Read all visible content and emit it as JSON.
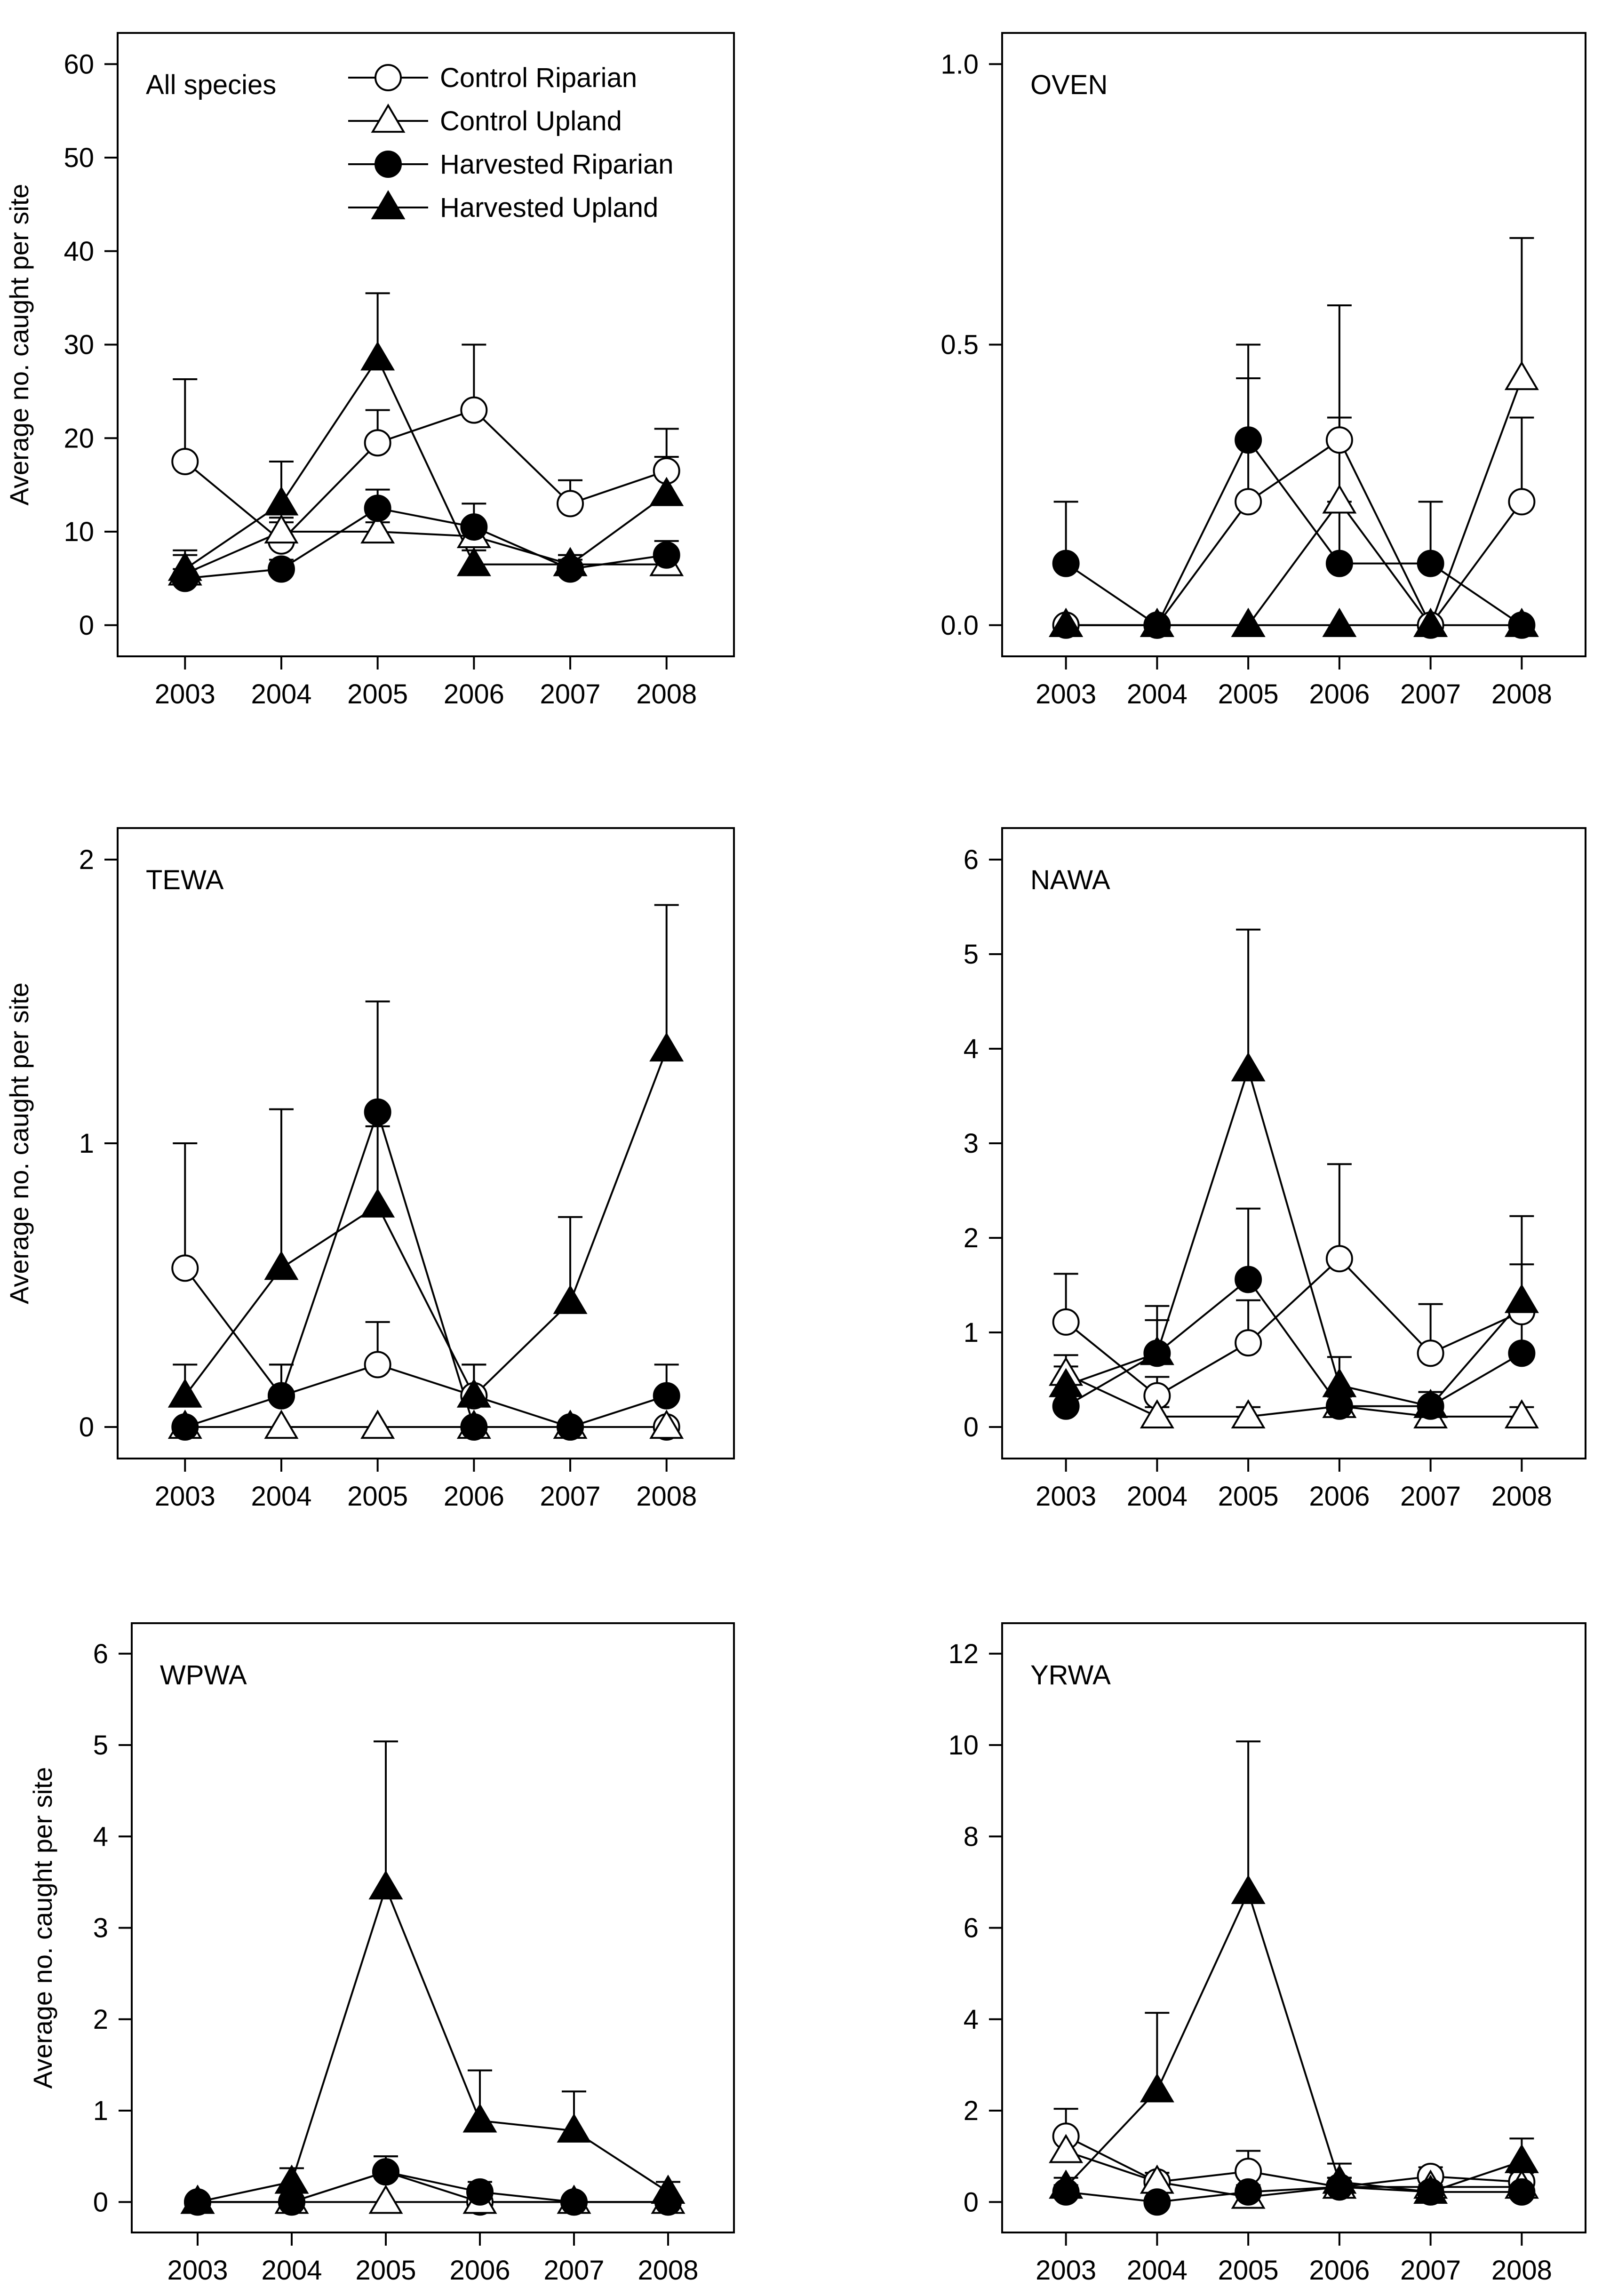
{
  "figure": {
    "ylabel": "Average no. caught per site",
    "legend": [
      "Control Riparian",
      "Control Upland",
      "Harvested Riparian",
      "Harvested Upland"
    ],
    "series_styles": [
      {
        "name": "Control Riparian",
        "marker": "circle",
        "fill": "#ffffff"
      },
      {
        "name": "Control Upland",
        "marker": "triangle",
        "fill": "#ffffff"
      },
      {
        "name": "Harvested Riparian",
        "marker": "circle",
        "fill": "#000000"
      },
      {
        "name": "Harvested Upland",
        "marker": "triangle",
        "fill": "#000000"
      }
    ]
  },
  "chart_data": [
    {
      "type": "line",
      "title": "All species",
      "categories": [
        "2003",
        "2004",
        "2005",
        "2006",
        "2007",
        "2008"
      ],
      "ylim": [
        0,
        60
      ],
      "yticks": [
        "0",
        "10",
        "20",
        "30",
        "40",
        "50",
        "60"
      ],
      "ylabel": "Average no. caught per site",
      "legend": "top-right",
      "series": [
        {
          "name": "Control Riparian",
          "values": [
            17.5,
            9,
            19.5,
            23,
            13,
            16.5
          ],
          "errors": [
            8.8,
            2,
            3.5,
            7,
            2.5,
            4.5
          ]
        },
        {
          "name": "Control Upland",
          "values": [
            5.5,
            10,
            10,
            9.5,
            6.5,
            6.5
          ],
          "errors": [
            2,
            1.5,
            1,
            1.5,
            1,
            1.5
          ]
        },
        {
          "name": "Harvested Riparian",
          "values": [
            5,
            6,
            12.5,
            10.5,
            6,
            7.5
          ],
          "errors": [
            1,
            1,
            2,
            2.5,
            1,
            1.5
          ]
        },
        {
          "name": "Harvested Upland",
          "values": [
            6,
            13,
            28.5,
            6.5,
            6.5,
            14
          ],
          "errors": [
            2,
            4.5,
            7,
            1.5,
            1,
            4
          ]
        }
      ]
    },
    {
      "type": "line",
      "title": "OVEN",
      "categories": [
        "2003",
        "2004",
        "2005",
        "2006",
        "2007",
        "2008"
      ],
      "ylim": [
        0,
        1.0
      ],
      "yticks": [
        "0.0",
        "0.5",
        "1.0"
      ],
      "series": [
        {
          "name": "Control Riparian",
          "values": [
            0,
            0,
            0.22,
            0.33,
            0,
            0.22
          ],
          "errors": [
            0,
            0,
            0.22,
            0.24,
            0,
            0.15
          ]
        },
        {
          "name": "Control Upland",
          "values": [
            0,
            0,
            0,
            0.22,
            0,
            0.44
          ],
          "errors": [
            0,
            0,
            0,
            0.15,
            0,
            0.25
          ]
        },
        {
          "name": "Harvested Riparian",
          "values": [
            0.11,
            0,
            0.33,
            0.11,
            0.11,
            0
          ],
          "errors": [
            0.11,
            0,
            0.17,
            0.11,
            0.11,
            0
          ]
        },
        {
          "name": "Harvested Upland",
          "values": [
            0,
            0,
            0,
            0,
            0,
            0
          ],
          "errors": [
            0,
            0,
            0,
            0,
            0,
            0
          ]
        }
      ]
    },
    {
      "type": "line",
      "title": "TEWA",
      "categories": [
        "2003",
        "2004",
        "2005",
        "2006",
        "2007",
        "2008"
      ],
      "ylim": [
        0,
        2
      ],
      "yticks": [
        "0",
        "1",
        "2"
      ],
      "ylabel": "Average no. caught per site",
      "series": [
        {
          "name": "Control Riparian",
          "values": [
            0.56,
            0.11,
            0.22,
            0.11,
            0,
            0
          ],
          "errors": [
            0.44,
            0.11,
            0.15,
            0.11,
            0,
            0
          ]
        },
        {
          "name": "Control Upland",
          "values": [
            0,
            0,
            0,
            0,
            0,
            0
          ],
          "errors": [
            0,
            0,
            0,
            0,
            0,
            0
          ]
        },
        {
          "name": "Harvested Riparian",
          "values": [
            0,
            0.11,
            1.11,
            0,
            0,
            0.11
          ],
          "errors": [
            0,
            0.11,
            0.39,
            0,
            0,
            0.11
          ]
        },
        {
          "name": "Harvested Upland",
          "values": [
            0.11,
            0.56,
            0.78,
            0.11,
            0.44,
            1.33
          ],
          "errors": [
            0.11,
            0.56,
            0.28,
            0.11,
            0.3,
            0.51
          ]
        }
      ]
    },
    {
      "type": "line",
      "title": "NAWA",
      "categories": [
        "2003",
        "2004",
        "2005",
        "2006",
        "2007",
        "2008"
      ],
      "ylim": [
        0,
        6
      ],
      "yticks": [
        "0",
        "1",
        "2",
        "3",
        "4",
        "5",
        "6"
      ],
      "series": [
        {
          "name": "Control Riparian",
          "values": [
            1.11,
            0.33,
            0.89,
            1.78,
            0.78,
            1.22
          ],
          "errors": [
            0.51,
            0.2,
            0.45,
            1.0,
            0.52,
            0.5
          ]
        },
        {
          "name": "Control Upland",
          "values": [
            0.56,
            0.11,
            0.11,
            0.22,
            0.11,
            0.11
          ],
          "errors": [
            0.2,
            0.1,
            0.1,
            0.1,
            0.1,
            0.1
          ]
        },
        {
          "name": "Harvested Riparian",
          "values": [
            0.22,
            0.78,
            1.56,
            0.22,
            0.22,
            0.78
          ],
          "errors": [
            0.15,
            0.5,
            0.75,
            0.15,
            0.15,
            0.5
          ]
        },
        {
          "name": "Harvested Upland",
          "values": [
            0.44,
            0.78,
            3.78,
            0.44,
            0.22,
            1.33
          ],
          "errors": [
            0.2,
            0.35,
            1.48,
            0.3,
            0.15,
            0.9
          ]
        }
      ]
    },
    {
      "type": "line",
      "title": "WPWA",
      "categories": [
        "2003",
        "2004",
        "2005",
        "2006",
        "2007",
        "2008"
      ],
      "ylim": [
        0,
        6
      ],
      "yticks": [
        "0",
        "1",
        "2",
        "3",
        "4",
        "5",
        "6"
      ],
      "ylabel": "Average no. caught per site",
      "series": [
        {
          "name": "Control Riparian",
          "values": [
            0,
            0,
            0.33,
            0,
            0,
            0
          ],
          "errors": [
            0,
            0,
            0.17,
            0,
            0,
            0
          ]
        },
        {
          "name": "Control Upland",
          "values": [
            0,
            0,
            0,
            0,
            0,
            0
          ],
          "errors": [
            0,
            0,
            0,
            0,
            0,
            0
          ]
        },
        {
          "name": "Harvested Riparian",
          "values": [
            0,
            0,
            0.33,
            0.11,
            0,
            0
          ],
          "errors": [
            0,
            0,
            0.17,
            0.11,
            0,
            0
          ]
        },
        {
          "name": "Harvested Upland",
          "values": [
            0,
            0.22,
            3.44,
            0.89,
            0.78,
            0.11
          ],
          "errors": [
            0,
            0.15,
            1.6,
            0.55,
            0.43,
            0.11
          ]
        }
      ]
    },
    {
      "type": "line",
      "title": "YRWA",
      "categories": [
        "2003",
        "2004",
        "2005",
        "2006",
        "2007",
        "2008"
      ],
      "ylim": [
        0,
        12
      ],
      "yticks": [
        "0",
        "2",
        "4",
        "6",
        "8",
        "10",
        "12"
      ],
      "series": [
        {
          "name": "Control Riparian",
          "values": [
            1.44,
            0.44,
            0.67,
            0.33,
            0.56,
            0.44
          ],
          "errors": [
            0.6,
            0.2,
            0.45,
            0.2,
            0.2,
            0.2
          ]
        },
        {
          "name": "Control Upland",
          "values": [
            1.11,
            0.44,
            0.11,
            0.33,
            0.33,
            0.33
          ],
          "errors": [
            0.4,
            0.2,
            0.1,
            0.2,
            0.2,
            0.2
          ]
        },
        {
          "name": "Harvested Riparian",
          "values": [
            0.22,
            0,
            0.22,
            0.33,
            0.22,
            0.22
          ],
          "errors": [
            0.15,
            0,
            0.15,
            0.2,
            0.15,
            0.15
          ]
        },
        {
          "name": "Harvested Upland",
          "values": [
            0.33,
            2.44,
            6.78,
            0.44,
            0.22,
            0.89
          ],
          "errors": [
            0.2,
            1.7,
            3.3,
            0.4,
            0.15,
            0.5
          ]
        }
      ]
    }
  ]
}
